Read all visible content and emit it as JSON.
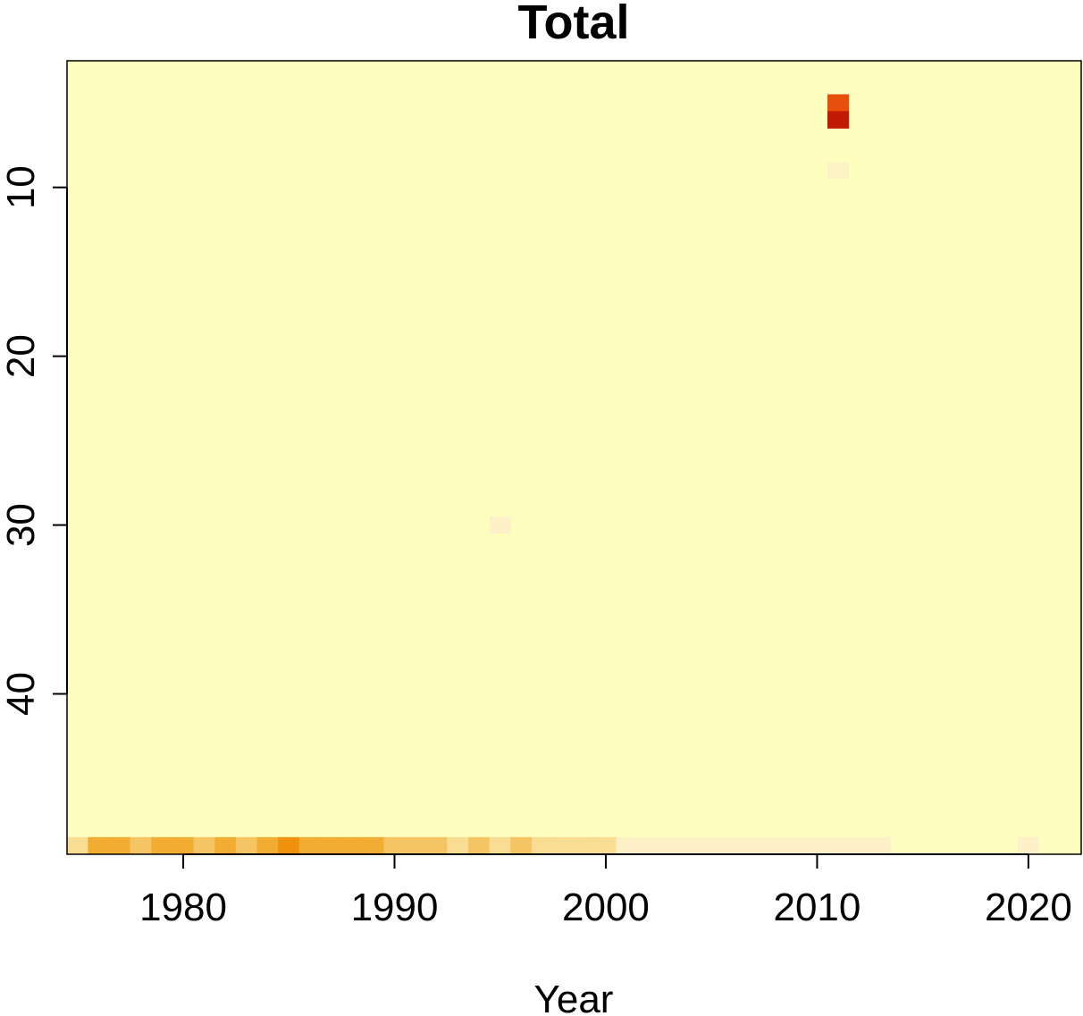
{
  "chart_data": {
    "type": "heatmap",
    "title": "Total",
    "xlabel": "Year",
    "ylabel": "",
    "xlim": [
      1974.5,
      2022.5
    ],
    "ylim": [
      2.5,
      49.5
    ],
    "y_reversed": true,
    "x_ticks": [
      1980,
      1990,
      2000,
      2010,
      2020
    ],
    "x_tick_labels": [
      "1980",
      "1990",
      "2000",
      "2010",
      "2020"
    ],
    "y_ticks": [
      10,
      20,
      30,
      40
    ],
    "y_tick_labels": [
      "10",
      "20",
      "30",
      "40"
    ],
    "background_color": "#FEFEBE",
    "grid": false,
    "legend": "none",
    "cells": [
      {
        "x": 2011,
        "y": 5,
        "color": "#E6500C"
      },
      {
        "x": 2011,
        "y": 6,
        "color": "#C11A04"
      },
      {
        "x": 2011,
        "y": 9,
        "color": "#FEF3C3"
      },
      {
        "x": 1995,
        "y": 30,
        "color": "#FEF1C8"
      },
      {
        "x": 1975,
        "y": 49,
        "color": "#F9DD92"
      },
      {
        "x": 1976,
        "y": 49,
        "color": "#F3AC32"
      },
      {
        "x": 1977,
        "y": 49,
        "color": "#F3AC32"
      },
      {
        "x": 1978,
        "y": 49,
        "color": "#F5C463"
      },
      {
        "x": 1979,
        "y": 49,
        "color": "#F3AC32"
      },
      {
        "x": 1980,
        "y": 49,
        "color": "#F3AC32"
      },
      {
        "x": 1981,
        "y": 49,
        "color": "#F5C463"
      },
      {
        "x": 1982,
        "y": 49,
        "color": "#F3AC32"
      },
      {
        "x": 1983,
        "y": 49,
        "color": "#F5C463"
      },
      {
        "x": 1984,
        "y": 49,
        "color": "#F3AC32"
      },
      {
        "x": 1985,
        "y": 49,
        "color": "#EF910C"
      },
      {
        "x": 1986,
        "y": 49,
        "color": "#F3AC32"
      },
      {
        "x": 1987,
        "y": 49,
        "color": "#F3AC32"
      },
      {
        "x": 1988,
        "y": 49,
        "color": "#F3AC32"
      },
      {
        "x": 1989,
        "y": 49,
        "color": "#F3AC32"
      },
      {
        "x": 1990,
        "y": 49,
        "color": "#F5C463"
      },
      {
        "x": 1991,
        "y": 49,
        "color": "#F5C463"
      },
      {
        "x": 1992,
        "y": 49,
        "color": "#F5C463"
      },
      {
        "x": 1993,
        "y": 49,
        "color": "#F9DD92"
      },
      {
        "x": 1994,
        "y": 49,
        "color": "#F5C463"
      },
      {
        "x": 1995,
        "y": 49,
        "color": "#F9DD92"
      },
      {
        "x": 1996,
        "y": 49,
        "color": "#F5C463"
      },
      {
        "x": 1997,
        "y": 49,
        "color": "#F9DD92"
      },
      {
        "x": 1998,
        "y": 49,
        "color": "#F9DD92"
      },
      {
        "x": 1999,
        "y": 49,
        "color": "#F9DD92"
      },
      {
        "x": 2000,
        "y": 49,
        "color": "#F9DD92"
      },
      {
        "x": 2001,
        "y": 49,
        "color": "#FEF1C8"
      },
      {
        "x": 2002,
        "y": 49,
        "color": "#FEF1C8"
      },
      {
        "x": 2003,
        "y": 49,
        "color": "#FEF1C8"
      },
      {
        "x": 2004,
        "y": 49,
        "color": "#FEF1C8"
      },
      {
        "x": 2005,
        "y": 49,
        "color": "#FEF1C8"
      },
      {
        "x": 2006,
        "y": 49,
        "color": "#FEF1C8"
      },
      {
        "x": 2007,
        "y": 49,
        "color": "#FEF1C8"
      },
      {
        "x": 2008,
        "y": 49,
        "color": "#FEF1C8"
      },
      {
        "x": 2009,
        "y": 49,
        "color": "#FEF1C8"
      },
      {
        "x": 2010,
        "y": 49,
        "color": "#FEF1C8"
      },
      {
        "x": 2011,
        "y": 49,
        "color": "#FEF1C8"
      },
      {
        "x": 2012,
        "y": 49,
        "color": "#FEF1C8"
      },
      {
        "x": 2013,
        "y": 49,
        "color": "#FEF1C8"
      },
      {
        "x": 2020,
        "y": 49,
        "color": "#FEF1C8"
      }
    ]
  }
}
